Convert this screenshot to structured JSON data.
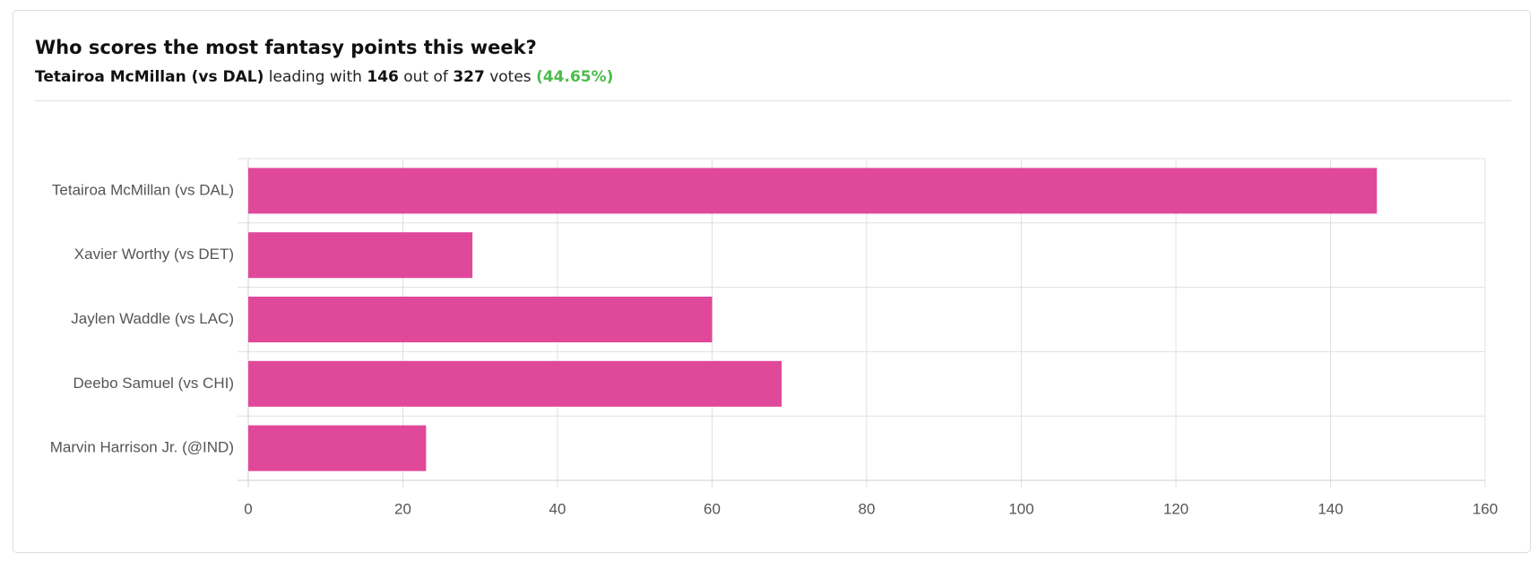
{
  "chart_data": {
    "type": "bar",
    "orientation": "horizontal",
    "title": "Who scores the most fantasy points this week?",
    "subtitle": {
      "leader": "Tetairoa McMillan (vs DAL)",
      "leading_with": "leading with",
      "votes_leader": 146,
      "out_of": "out of",
      "votes_total": 327,
      "votes": "votes",
      "share": "(44.65%)"
    },
    "categories": [
      "Tetairoa McMillan (vs DAL)",
      "Xavier Worthy (vs DET)",
      "Jaylen Waddle (vs LAC)",
      "Deebo Samuel (vs CHI)",
      "Marvin Harrison Jr. (@IND)"
    ],
    "values": [
      146,
      29,
      60,
      69,
      23
    ],
    "color": "#e0489a",
    "xlim": [
      0,
      160
    ],
    "xticks": [
      0,
      20,
      40,
      60,
      80,
      100,
      120,
      140,
      160
    ],
    "grid": true
  }
}
